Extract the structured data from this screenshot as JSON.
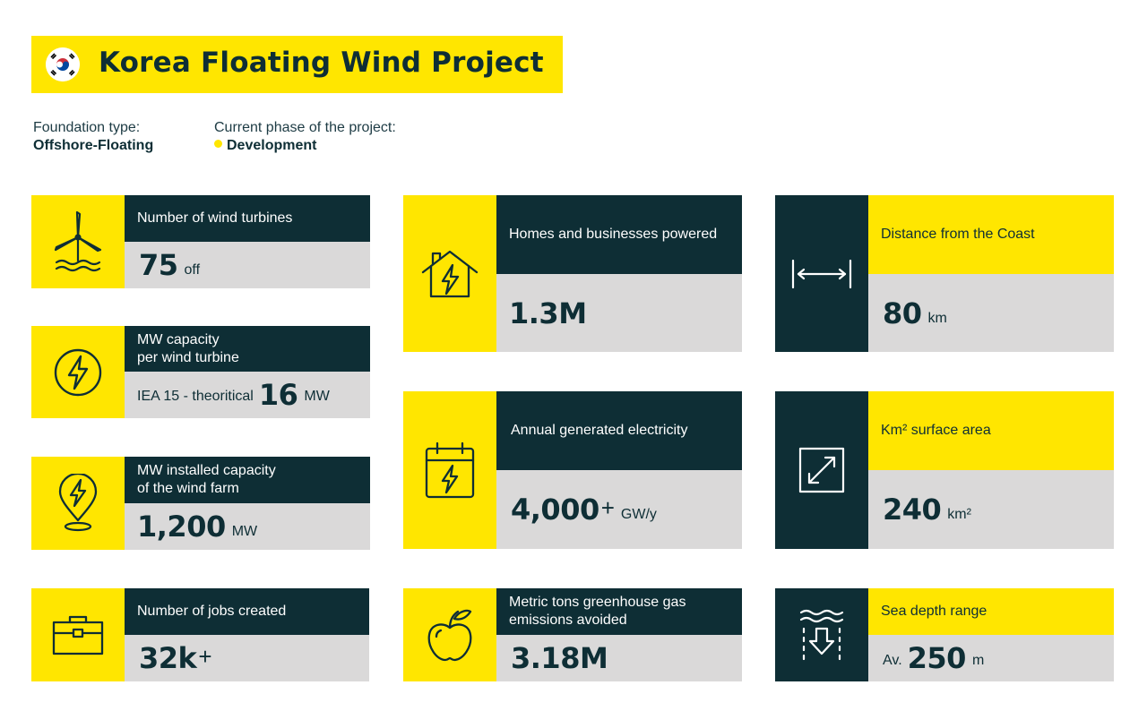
{
  "title": "Korea Floating Wind Project",
  "flag_icon": "south-korea-flag-icon",
  "foundation": {
    "label": "Foundation type:",
    "value": "Offshore-Floating"
  },
  "phase": {
    "label": "Current phase of the project:",
    "value": "Development"
  },
  "colors": {
    "yellow": "#ffe600",
    "dark": "#0e2e35",
    "grey": "#dad9d9"
  },
  "cards": {
    "turbines": {
      "label": "Number of wind turbines",
      "value": "75",
      "unit": "off",
      "icon": "wind-turbine-icon"
    },
    "capacity_per": {
      "label1": "MW capacity",
      "label2": "per wind turbine",
      "prefix": "IEA 15 - theoritical",
      "value": "16",
      "unit": "MW",
      "icon": "lightning-circle-icon"
    },
    "installed": {
      "label1": "MW installed capacity",
      "label2": "of the wind farm",
      "value": "1,200",
      "unit": "MW",
      "icon": "location-lightning-icon"
    },
    "jobs": {
      "label": "Number of jobs created",
      "value": "32k",
      "plus": "+",
      "icon": "briefcase-icon"
    },
    "homes": {
      "label": "Homes and businesses powered",
      "value": "1.3M",
      "icon": "house-lightning-icon"
    },
    "annual": {
      "label": "Annual generated electricity",
      "value": "4,000",
      "plus": "+",
      "unit": "GW/y",
      "icon": "calendar-lightning-icon"
    },
    "emissions": {
      "label1": "Metric tons greenhouse gas",
      "label2": "emissions avoided",
      "value": "3.18M",
      "icon": "apple-icon"
    },
    "distance": {
      "label": "Distance from the Coast",
      "value": "80",
      "unit": "km",
      "icon": "distance-arrow-icon"
    },
    "surface": {
      "label": "Km² surface area",
      "value": "240",
      "unit": "km²",
      "icon": "diagonal-expand-icon"
    },
    "depth": {
      "label": "Sea depth range",
      "prefix": "Av.",
      "value": "250",
      "unit": "m",
      "icon": "sea-depth-icon"
    }
  }
}
